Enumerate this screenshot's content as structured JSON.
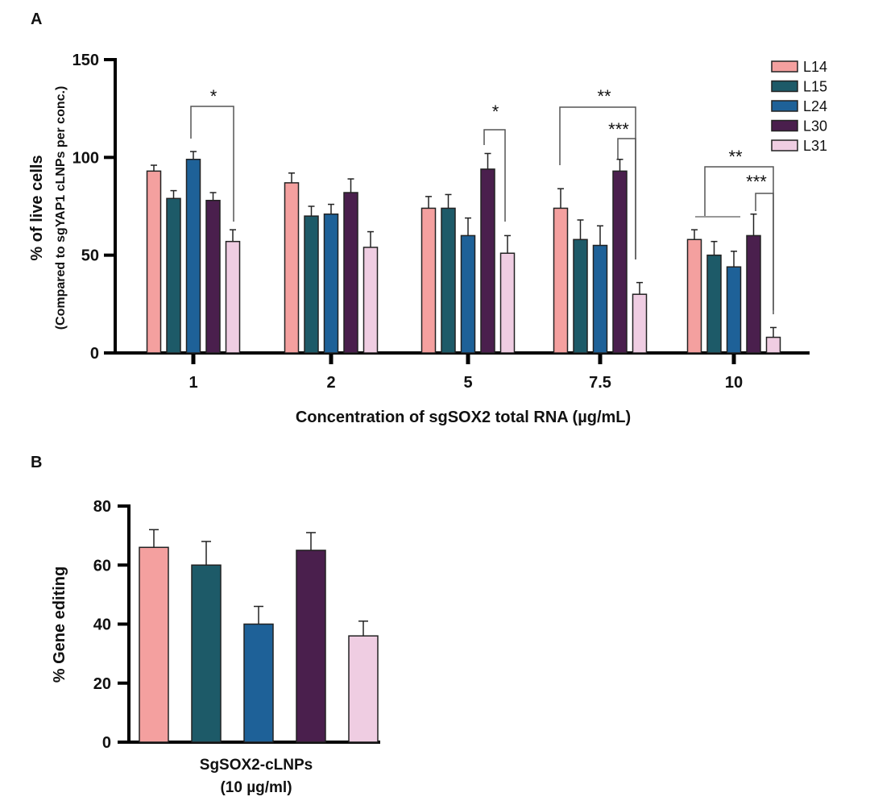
{
  "colors": {
    "L14": "#f4a09f",
    "L15": "#1d5a68",
    "L24": "#1e6198",
    "L30": "#4a1f4d",
    "L31": "#efcde2"
  },
  "chart_data": [
    {
      "panel": "A",
      "type": "bar",
      "xlabel": "Concentration of sgSOX2 total RNA (µg/mL)",
      "ylabel": "% of live cells",
      "ylabel2": "(Compared to sgYAP1 cLNPs per conc.)",
      "ylim": [
        0,
        150
      ],
      "yticks": [
        "0",
        "50",
        "100",
        "150"
      ],
      "categories": [
        "1",
        "2",
        "5",
        "7.5",
        "10"
      ],
      "legend_position": "top-right",
      "series": [
        {
          "name": "L14",
          "values": [
            93,
            87,
            74,
            74,
            58
          ],
          "errors": [
            3,
            5,
            6,
            10,
            5
          ]
        },
        {
          "name": "L15",
          "values": [
            79,
            70,
            74,
            58,
            50
          ],
          "errors": [
            4,
            5,
            7,
            10,
            7
          ]
        },
        {
          "name": "L24",
          "values": [
            99,
            71,
            60,
            55,
            44
          ],
          "errors": [
            4,
            5,
            9,
            10,
            8
          ]
        },
        {
          "name": "L30",
          "values": [
            78,
            82,
            94,
            93,
            60
          ],
          "errors": [
            4,
            7,
            8,
            6,
            11
          ]
        },
        {
          "name": "L31",
          "values": [
            57,
            54,
            51,
            30,
            8
          ],
          "errors": [
            6,
            8,
            9,
            6,
            5
          ]
        }
      ],
      "annotations": [
        {
          "category": "1",
          "from": "L24",
          "to": "L31",
          "label": "*"
        },
        {
          "category": "5",
          "from": "L30",
          "to": "L31",
          "label": "*"
        },
        {
          "category": "7.5",
          "from": "L14",
          "to": "L31",
          "label": "**"
        },
        {
          "category": "7.5",
          "from": "L30",
          "to": "L31",
          "label": "***"
        },
        {
          "category": "10",
          "from": "L14-L24",
          "to": "L31",
          "label": "**"
        },
        {
          "category": "10",
          "from": "L30",
          "to": "L31",
          "label": "***"
        }
      ]
    },
    {
      "panel": "B",
      "type": "bar",
      "xlabel": "SgSOX2-cLNPs",
      "xlabel2": "(10 µg/ml)",
      "ylabel": "% Gene editing",
      "ylim": [
        0,
        80
      ],
      "yticks": [
        "0",
        "20",
        "40",
        "60",
        "80"
      ],
      "categories": [
        "L14",
        "L15",
        "L24",
        "L30",
        "L31"
      ],
      "values": [
        66,
        60,
        40,
        65,
        36
      ],
      "errors": [
        6,
        8,
        6,
        6,
        5
      ]
    }
  ]
}
